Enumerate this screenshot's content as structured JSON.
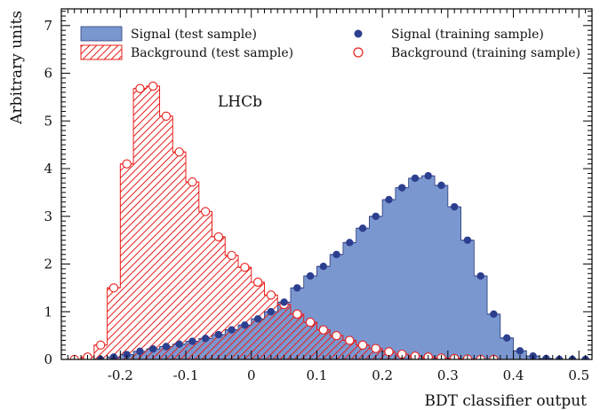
{
  "chart_data": {
    "type": "bar",
    "title": "",
    "xlabel": "BDT classifier output",
    "ylabel": "Arbitrary units",
    "annotation": "LHCb",
    "xlim": [
      -0.29,
      0.52
    ],
    "ylim": [
      0,
      7.35
    ],
    "x_ticks": [
      -0.2,
      -0.1,
      0,
      0.1,
      0.2,
      0.3,
      0.4,
      0.5
    ],
    "x_tick_labels": [
      "-0.2",
      "-0.1",
      "0",
      "0.1",
      "0.2",
      "0.3",
      "0.4",
      "0.5"
    ],
    "y_ticks": [
      0,
      1,
      2,
      3,
      4,
      5,
      6,
      7
    ],
    "y_tick_labels": [
      "0",
      "1",
      "2",
      "3",
      "4",
      "5",
      "6",
      "7"
    ],
    "bin_edges": [
      -0.28,
      -0.26,
      -0.24,
      -0.22,
      -0.2,
      -0.18,
      -0.16,
      -0.14,
      -0.12,
      -0.1,
      -0.08,
      -0.06,
      -0.04,
      -0.02,
      0.0,
      0.02,
      0.04,
      0.06,
      0.08,
      0.1,
      0.12,
      0.14,
      0.16,
      0.18,
      0.2,
      0.22,
      0.24,
      0.26,
      0.28,
      0.3,
      0.32,
      0.34,
      0.36,
      0.38,
      0.4,
      0.42,
      0.44,
      0.46,
      0.48,
      0.5,
      0.52
    ],
    "legend_position": "top",
    "colors": {
      "signal_fill": "#7b97d0",
      "signal_outline": "#2a3a78",
      "signal_marker": "#2d3f8f",
      "background": "#e8201c"
    },
    "series": [
      {
        "name": "Signal (test sample)",
        "style": "filled-histogram",
        "values": [
          0.0,
          0.0,
          0.0,
          0.05,
          0.1,
          0.17,
          0.22,
          0.27,
          0.32,
          0.38,
          0.44,
          0.52,
          0.62,
          0.72,
          0.85,
          1.0,
          1.2,
          1.5,
          1.75,
          1.95,
          2.2,
          2.45,
          2.75,
          3.0,
          3.35,
          3.6,
          3.8,
          3.85,
          3.65,
          3.2,
          2.5,
          1.75,
          0.95,
          0.45,
          0.18,
          0.07,
          0.02,
          0.0,
          0.0,
          0.0
        ]
      },
      {
        "name": "Background (test sample)",
        "style": "hatched-histogram",
        "values": [
          0.0,
          0.05,
          0.3,
          1.5,
          4.1,
          5.68,
          5.73,
          5.1,
          4.35,
          3.72,
          3.1,
          2.57,
          2.18,
          1.93,
          1.62,
          1.35,
          1.15,
          0.95,
          0.78,
          0.62,
          0.5,
          0.4,
          0.3,
          0.23,
          0.16,
          0.11,
          0.07,
          0.05,
          0.03,
          0.02,
          0.01,
          0.0,
          0.0,
          0.0,
          0.0,
          0.0,
          0.0,
          0.0,
          0.0,
          0.0
        ]
      },
      {
        "name": "Signal (training sample)",
        "style": "markers",
        "values": [
          null,
          null,
          0.0,
          0.05,
          0.1,
          0.17,
          0.22,
          0.27,
          0.32,
          0.38,
          0.44,
          0.52,
          0.62,
          0.72,
          0.85,
          1.0,
          1.2,
          1.5,
          1.75,
          1.95,
          2.2,
          2.45,
          2.75,
          3.0,
          3.35,
          3.6,
          3.8,
          3.85,
          3.65,
          3.2,
          2.5,
          1.75,
          0.95,
          0.45,
          0.18,
          0.07,
          0.02,
          0.0,
          0.0,
          0.0
        ]
      },
      {
        "name": "Background (training sample)",
        "style": "open-markers",
        "values": [
          0.0,
          0.05,
          0.3,
          1.5,
          4.1,
          5.68,
          5.73,
          5.1,
          4.35,
          3.72,
          3.1,
          2.57,
          2.18,
          1.93,
          1.62,
          1.35,
          1.15,
          0.95,
          0.78,
          0.62,
          0.5,
          0.4,
          0.3,
          0.23,
          0.16,
          0.11,
          0.07,
          0.05,
          0.03,
          0.02,
          0.01,
          0.0,
          0.0,
          null,
          null,
          null,
          null,
          null,
          null,
          null
        ]
      }
    ]
  }
}
